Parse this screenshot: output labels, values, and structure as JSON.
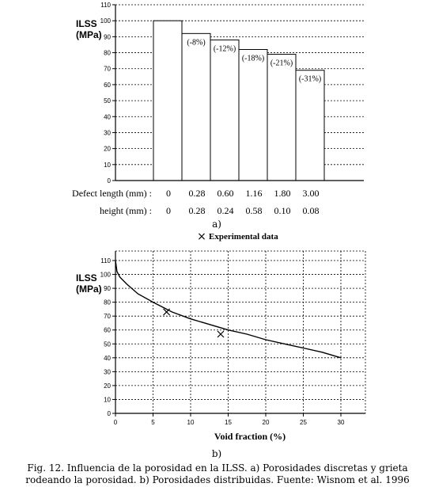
{
  "chart_data": [
    {
      "id": "a",
      "type": "bar",
      "ylabel_line1": "ILSS",
      "ylabel_line2": "(MPa)",
      "ylim": [
        0,
        110
      ],
      "yticks": [
        "0",
        "10",
        "20",
        "30",
        "40",
        "50",
        "60",
        "70",
        "80",
        "90",
        "100",
        "110"
      ],
      "grid": true,
      "values": [
        100,
        92,
        88,
        82,
        79,
        69
      ],
      "labels": [
        "",
        "(-8%)",
        "(-12%)",
        "(-18%)",
        "(-21%)",
        "(-31%)"
      ],
      "rows": [
        {
          "label": "Defect length (mm) :",
          "values": [
            "0",
            "0.28",
            "0.60",
            "1.16",
            "1.80",
            "3.00"
          ]
        },
        {
          "label": "height (mm) :",
          "values": [
            "0",
            "0.28",
            "0.24",
            "0.58",
            "0.10",
            "0.08"
          ]
        }
      ],
      "sublabel": "a)"
    },
    {
      "id": "b",
      "type": "scatter",
      "legend_marker": "×",
      "legend_text": "Experimental data",
      "legend_placement": "top",
      "ylabel_line1": "ILSS",
      "ylabel_line2": "(MPa)",
      "xlabel": "Void fraction (%)",
      "xlim": [
        0,
        30
      ],
      "ylim": [
        0,
        110
      ],
      "xticks": [
        "0",
        "5",
        "10",
        "15",
        "20",
        "25",
        "30"
      ],
      "yticks": [
        "0",
        "10",
        "20",
        "30",
        "40",
        "50",
        "60",
        "70",
        "80",
        "90",
        "100",
        "110"
      ],
      "grid": true,
      "experimental": [
        {
          "x": 6.8,
          "y": 73
        },
        {
          "x": 14.0,
          "y": 57
        }
      ],
      "curve": [
        {
          "x": 0,
          "y": 110
        },
        {
          "x": 0.2,
          "y": 102
        },
        {
          "x": 0.6,
          "y": 98
        },
        {
          "x": 1.5,
          "y": 93
        },
        {
          "x": 3,
          "y": 86
        },
        {
          "x": 5,
          "y": 80
        },
        {
          "x": 7.5,
          "y": 73
        },
        {
          "x": 10,
          "y": 68
        },
        {
          "x": 12.5,
          "y": 64
        },
        {
          "x": 15,
          "y": 60
        },
        {
          "x": 17.5,
          "y": 57
        },
        {
          "x": 20,
          "y": 53
        },
        {
          "x": 22.5,
          "y": 50
        },
        {
          "x": 25,
          "y": 47
        },
        {
          "x": 27.5,
          "y": 44
        },
        {
          "x": 30,
          "y": 40
        }
      ],
      "sublabel": "b)"
    }
  ],
  "caption": {
    "line1": "Fig. 12. Influencia de  la porosidad en la ILSS. a) Porosidades discretas y grieta",
    "line2": "rodeando la porosidad. b) Porosidades distribuidas. Fuente: Wisnom et al. 1996"
  }
}
